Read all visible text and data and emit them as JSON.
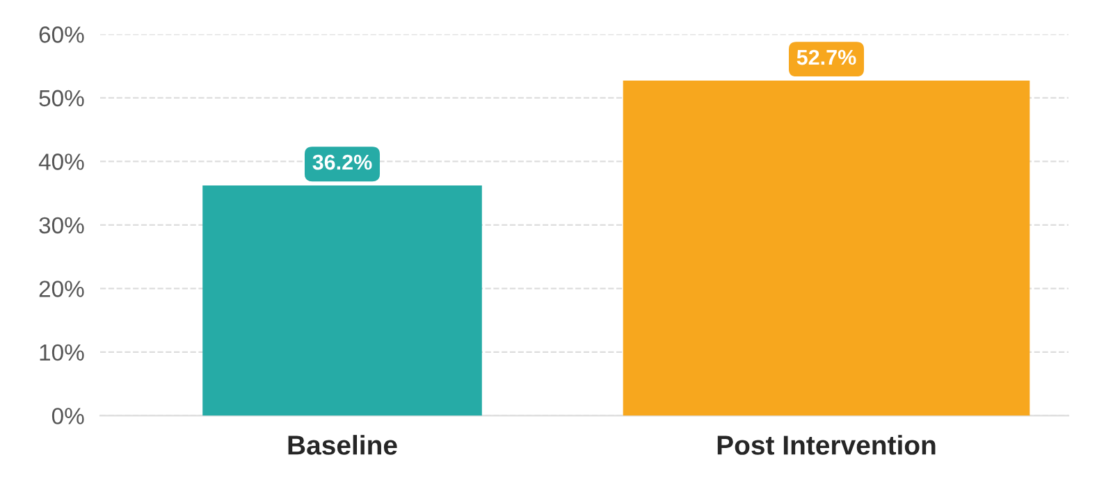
{
  "chart_data": {
    "type": "bar",
    "categories": [
      "Baseline",
      "Post Intervention"
    ],
    "values": [
      36.2,
      52.7
    ],
    "colors": [
      "#26aba6",
      "#f7a71e"
    ],
    "value_labels": [
      "36.2%",
      "52.7%"
    ],
    "ylim": [
      0,
      60
    ],
    "yticks": [
      {
        "value": 0,
        "label": "0%"
      },
      {
        "value": 10,
        "label": "10%"
      },
      {
        "value": 20,
        "label": "20%"
      },
      {
        "value": 30,
        "label": "30%"
      },
      {
        "value": 40,
        "label": "40%"
      },
      {
        "value": 50,
        "label": "50%"
      },
      {
        "value": 60,
        "label": "60%"
      }
    ],
    "grid": "y"
  }
}
